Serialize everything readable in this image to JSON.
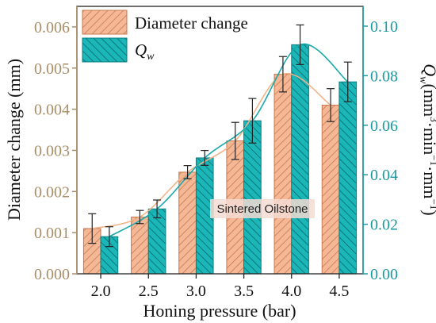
{
  "chart_data": {
    "type": "bar",
    "categories": [
      "2.0",
      "2.5",
      "3.0",
      "3.5",
      "4.0",
      "4.5"
    ],
    "xlabel": "Honing pressure (bar)",
    "ylabel_left": "Diameter change (mm)",
    "ylabel_right_main": "Q",
    "ylabel_right_sub": "w",
    "ylabel_right_rest": "(mm",
    "ylabel_right_sup1": "3",
    "ylabel_right_mid1": "·min",
    "ylabel_right_sup2": "−1",
    "ylabel_right_mid2": "·mm",
    "ylabel_right_sup3": "−1",
    "ylabel_right_end": ")",
    "ylim_left": [
      0,
      0.0065
    ],
    "ylim_right": [
      0,
      0.108
    ],
    "yticks_left": [
      "0.000",
      "0.001",
      "0.002",
      "0.003",
      "0.004",
      "0.005",
      "0.006"
    ],
    "yticks_right": [
      "0.00",
      "0.02",
      "0.04",
      "0.06",
      "0.08",
      "0.10"
    ],
    "annotation": "Sintered Oilstone",
    "legend_placement": "top-left",
    "series": [
      {
        "name": "Diameter change",
        "axis": "left",
        "values": [
          0.0011,
          0.00138,
          0.00247,
          0.00323,
          0.00485,
          0.0041
        ],
        "errors": [
          0.00036,
          0.00016,
          0.00016,
          0.00045,
          0.00043,
          0.0004
        ],
        "color": "#f4b897",
        "stroke": "#c9784e"
      },
      {
        "name": "Q",
        "name_sub": "w",
        "axis": "right",
        "values": [
          0.015,
          0.0262,
          0.0468,
          0.0618,
          0.0925,
          0.0775
        ],
        "errors": [
          0.004,
          0.0036,
          0.003,
          0.009,
          0.008,
          0.008
        ],
        "color": "#1ab6b8",
        "stroke": "#0f7f80"
      }
    ],
    "colors": {
      "left_axis": "#a98d67",
      "right_axis": "#1a9aa0"
    }
  }
}
